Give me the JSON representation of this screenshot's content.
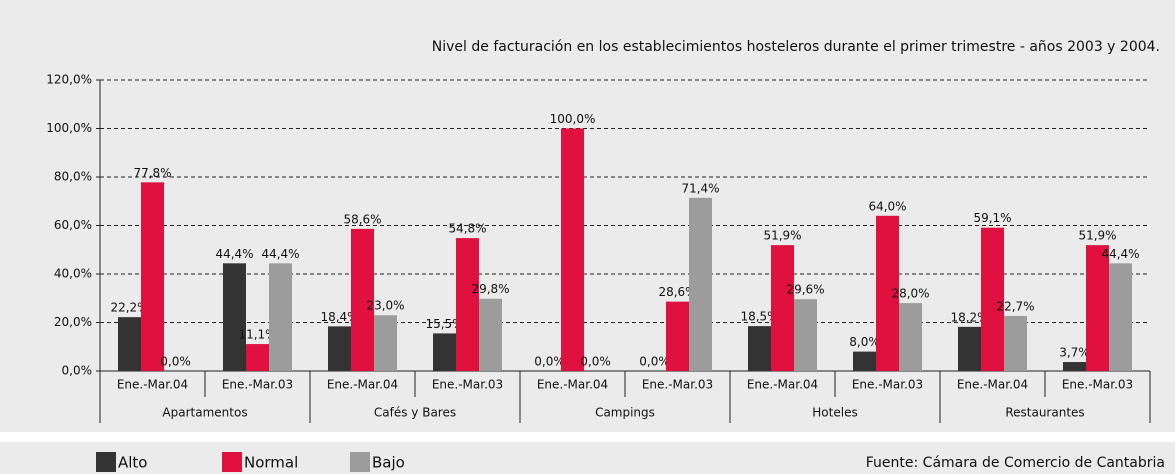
{
  "chart_data": {
    "type": "bar",
    "title": "Nivel de facturación en los establecimientos hosteleros durante el primer trimestre - años 2003 y 2004.",
    "source": "Fuente: Cámara de Comercio de Cantabria",
    "categories": [
      "Ene.-Mar.04",
      "Ene.-Mar.03",
      "Ene.-Mar.04",
      "Ene.-Mar.03",
      "Ene.-Mar.04",
      "Ene.-Mar.03",
      "Ene.-Mar.04",
      "Ene.-Mar.03",
      "Ene.-Mar.04",
      "Ene.-Mar.03"
    ],
    "groups": [
      "Apartamentos",
      "Cafés y Bares",
      "Campings",
      "Hoteles",
      "Restaurantes"
    ],
    "series": [
      {
        "name": "Alto",
        "color": "#333333",
        "values": [
          22.2,
          44.4,
          18.4,
          15.5,
          0.0,
          0.0,
          18.5,
          8.0,
          18.2,
          3.7
        ],
        "value_labels": [
          "22,2%",
          "44,4%",
          "18,4%",
          "15,5%",
          "0,0%",
          "0,0%",
          "18,5%",
          "8,0%",
          "18,2%",
          "3,7%"
        ]
      },
      {
        "name": "Normal",
        "color": "#e0103f",
        "values": [
          77.8,
          11.1,
          58.6,
          54.8,
          100.0,
          28.6,
          51.9,
          64.0,
          59.1,
          51.9
        ],
        "value_labels": [
          "77,8%",
          "11,1%",
          "58,6%",
          "54,8%",
          "100,0%",
          "28,6%",
          "51,9%",
          "64,0%",
          "59,1%",
          "51,9%"
        ]
      },
      {
        "name": "Bajo",
        "color": "#9c9c9c",
        "values": [
          0.0,
          44.4,
          23.0,
          29.8,
          0.0,
          71.4,
          29.6,
          28.0,
          22.7,
          44.4
        ],
        "value_labels": [
          "0,0%",
          "44,4%",
          "23,0%",
          "29,8%",
          "0,0%",
          "71,4%",
          "29,6%",
          "28,0%",
          "22,7%",
          "44,4%"
        ]
      }
    ],
    "ylim": [
      0,
      120
    ],
    "yticks": [
      {
        "value": 0,
        "label": "0,0%"
      },
      {
        "value": 20,
        "label": "20,0%"
      },
      {
        "value": 40,
        "label": "40,0%"
      },
      {
        "value": 60,
        "label": "60,0%"
      },
      {
        "value": 80,
        "label": "80,0%"
      },
      {
        "value": 100,
        "label": "100,0%"
      },
      {
        "value": 120,
        "label": "120,0%"
      }
    ],
    "grid": true
  }
}
